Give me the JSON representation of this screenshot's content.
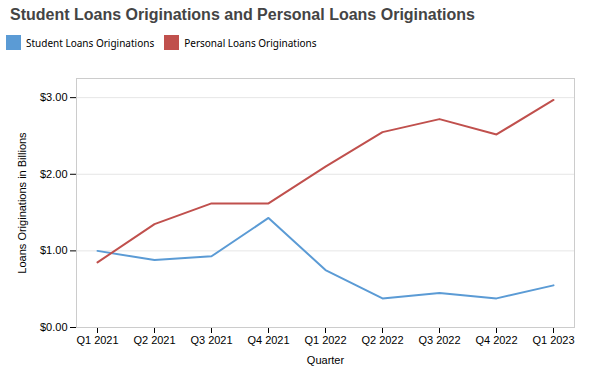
{
  "chart_data": {
    "type": "line",
    "title": "Student Loans Originations and Personal Loans Originations",
    "xlabel": "Quarter",
    "ylabel": "Loans Originations in Billions",
    "categories": [
      "Q1 2021",
      "Q2 2021",
      "Q3 2021",
      "Q4 2021",
      "Q1 2022",
      "Q2 2022",
      "Q3 2022",
      "Q4 2022",
      "Q1 2023"
    ],
    "series": [
      {
        "name": "Student Loans Originations",
        "color": "#5b9bd5",
        "values": [
          1.0,
          0.88,
          0.93,
          1.43,
          0.75,
          0.38,
          0.45,
          0.38,
          0.55
        ]
      },
      {
        "name": "Personal Loans Originations",
        "color": "#c0504d",
        "values": [
          0.85,
          1.35,
          1.62,
          1.62,
          2.1,
          2.55,
          2.72,
          2.52,
          2.97
        ]
      }
    ],
    "ylim": [
      0.0,
      3.25
    ],
    "yticks": [
      {
        "value": 0.0,
        "label": "$0.00"
      },
      {
        "value": 1.0,
        "label": "$1.00"
      },
      {
        "value": 2.0,
        "label": "$2.00"
      },
      {
        "value": 3.0,
        "label": "$3.00"
      }
    ],
    "grid": true,
    "legend": "top"
  }
}
